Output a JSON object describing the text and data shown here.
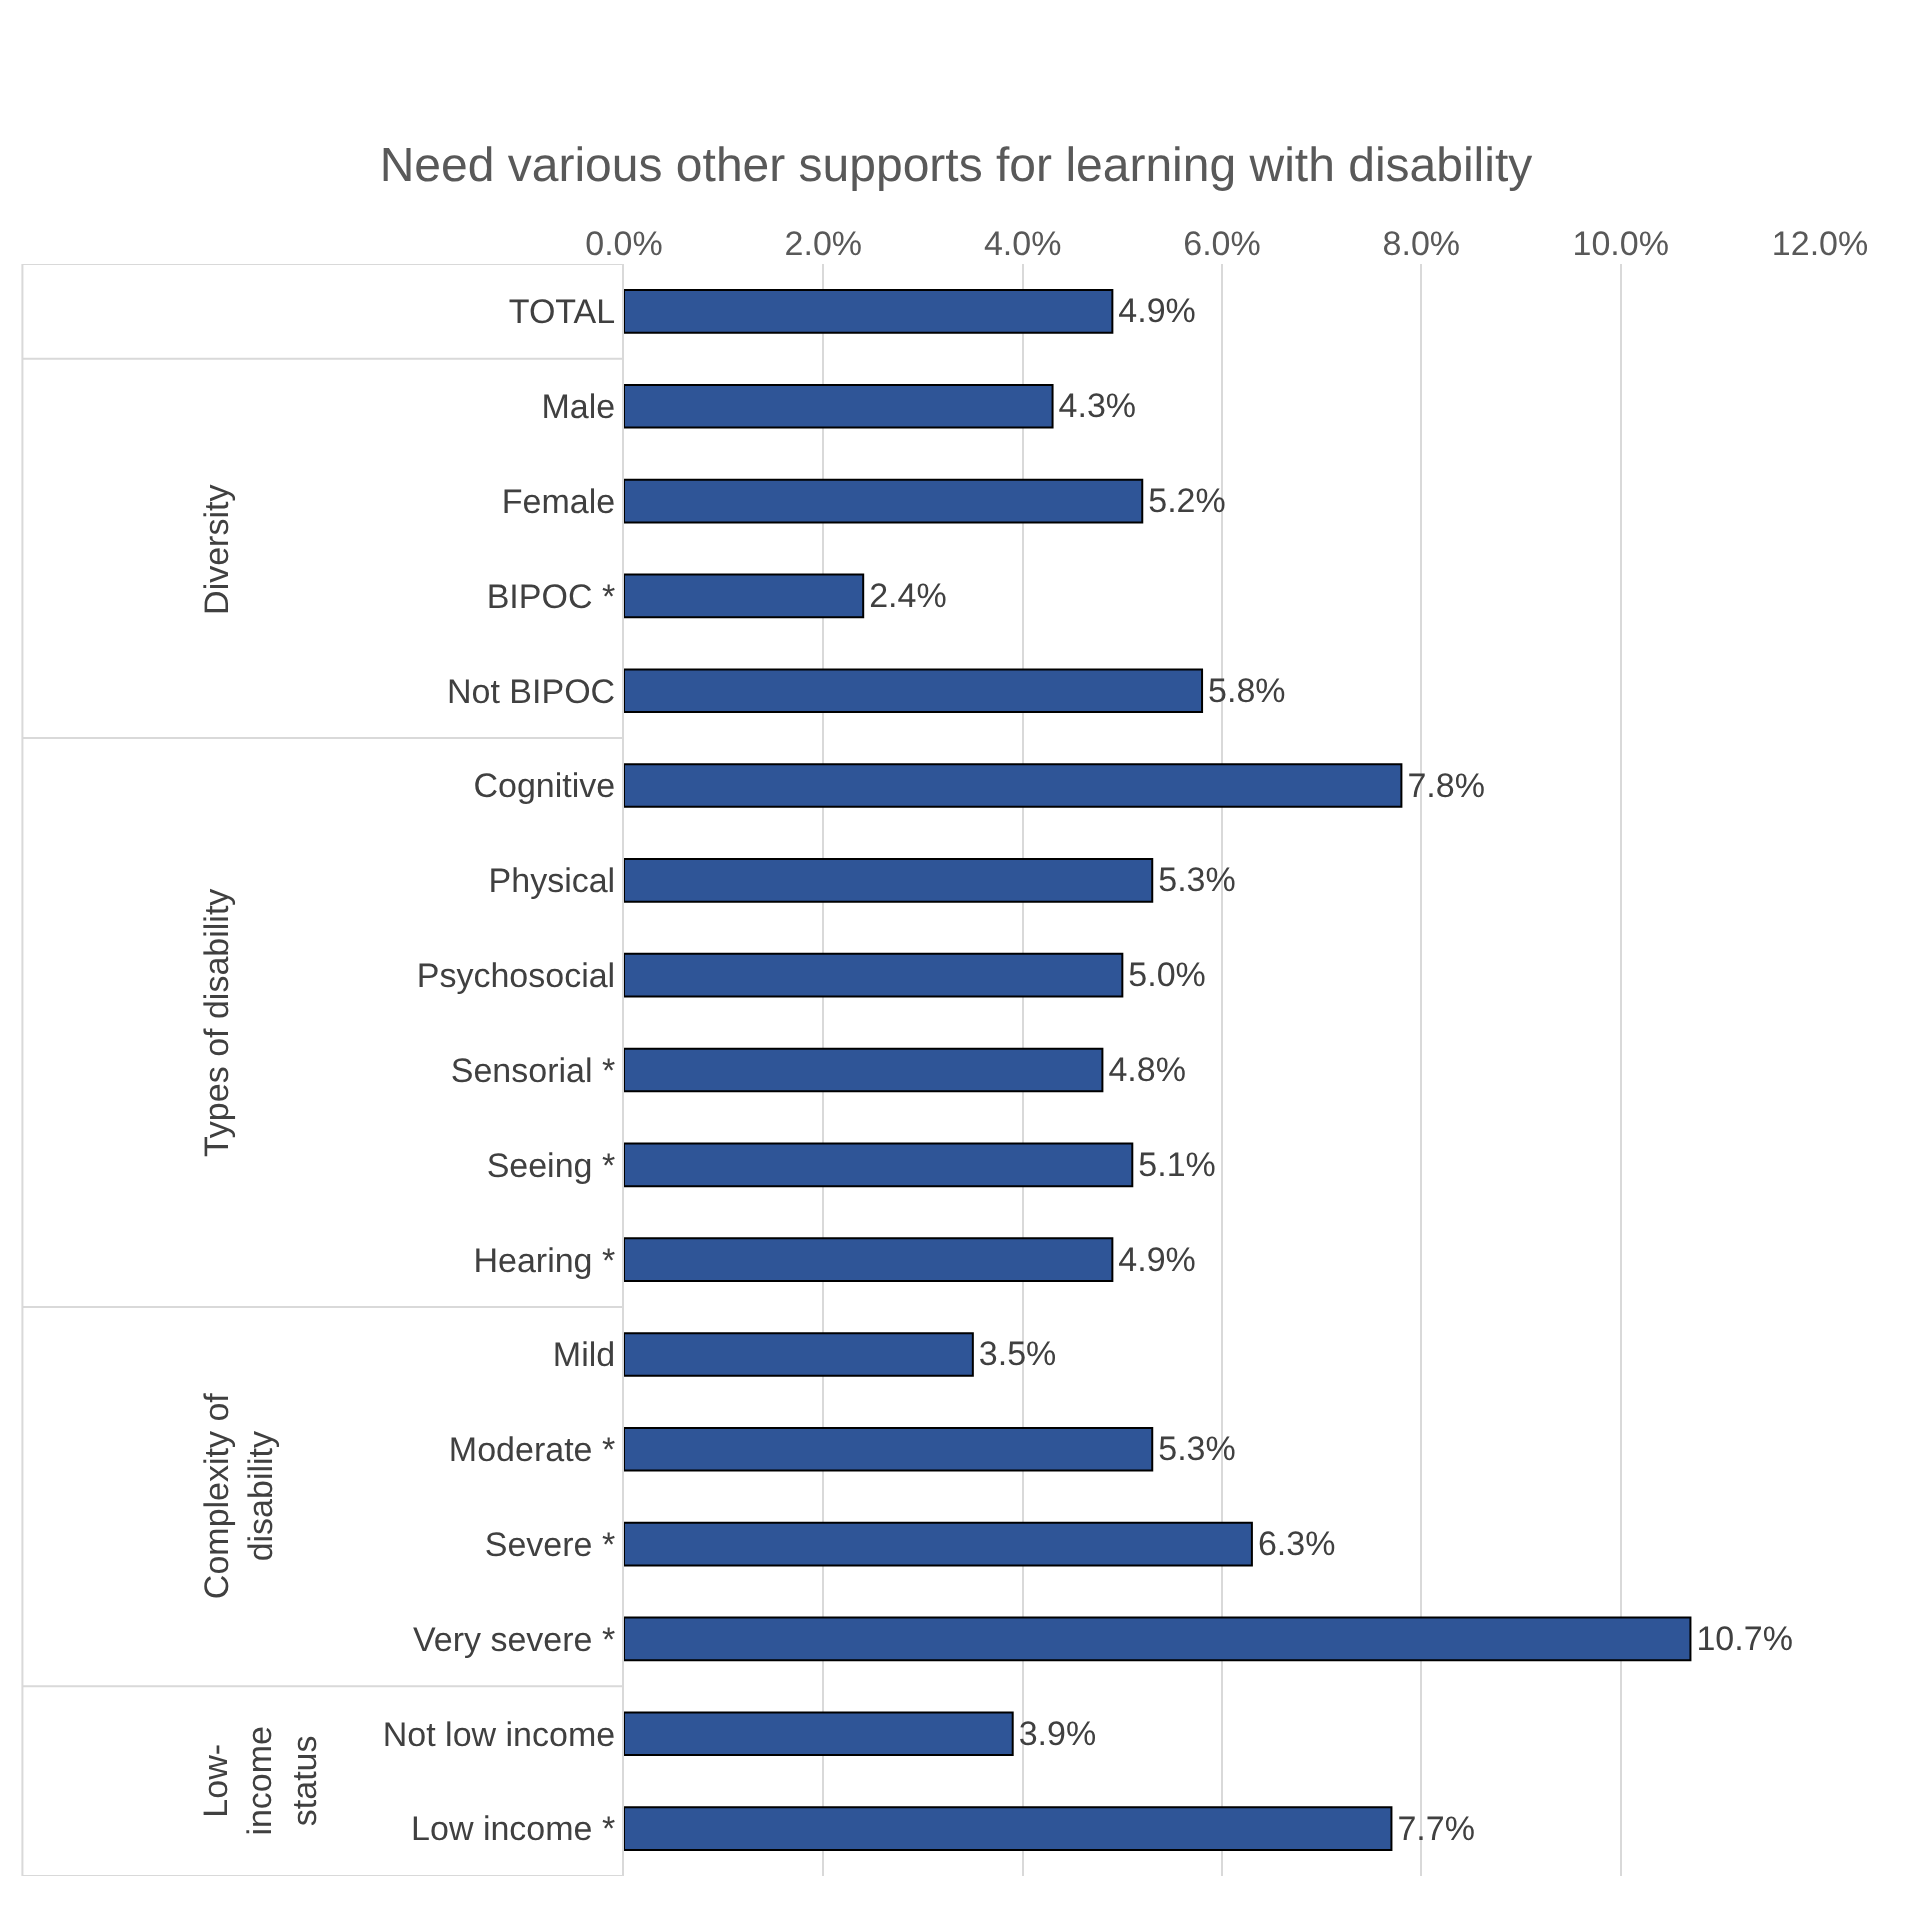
{
  "chart_data": {
    "type": "bar",
    "orientation": "horizontal",
    "title": "Need various other supports for learning with disability",
    "categories": [
      "TOTAL",
      "Male",
      "Female",
      "BIPOC *",
      "Not BIPOC",
      "Cognitive",
      "Physical",
      "Psychosocial",
      "Sensorial *",
      "Seeing *",
      "Hearing *",
      "Mild",
      "Moderate *",
      "Severe *",
      "Very severe *",
      "Not low income",
      "Low income *"
    ],
    "values": [
      4.9,
      4.3,
      5.2,
      2.4,
      5.8,
      7.8,
      5.3,
      5.0,
      4.8,
      5.1,
      4.9,
      3.5,
      5.3,
      6.3,
      10.7,
      3.9,
      7.7
    ],
    "value_labels": [
      "4.9%",
      "4.3%",
      "5.2%",
      "2.4%",
      "5.8%",
      "7.8%",
      "5.3%",
      "5.0%",
      "4.8%",
      "5.1%",
      "4.9%",
      "3.5%",
      "5.3%",
      "6.3%",
      "10.7%",
      "3.9%",
      "7.7%"
    ],
    "color": "#2f5597",
    "xlim": [
      0,
      12
    ],
    "xticks": [
      {
        "value": 0,
        "label": "0.0%"
      },
      {
        "value": 2,
        "label": "2.0%"
      },
      {
        "value": 4,
        "label": "4.0%"
      },
      {
        "value": 6,
        "label": "6.0%"
      },
      {
        "value": 8,
        "label": "8.0%"
      },
      {
        "value": 10,
        "label": "10.0%"
      },
      {
        "value": 12,
        "label": "12.0%"
      }
    ],
    "grid": "x",
    "annotations": [
      "Diversity",
      "Types of disability",
      "Complexity of disability",
      "Low-income status"
    ]
  }
}
